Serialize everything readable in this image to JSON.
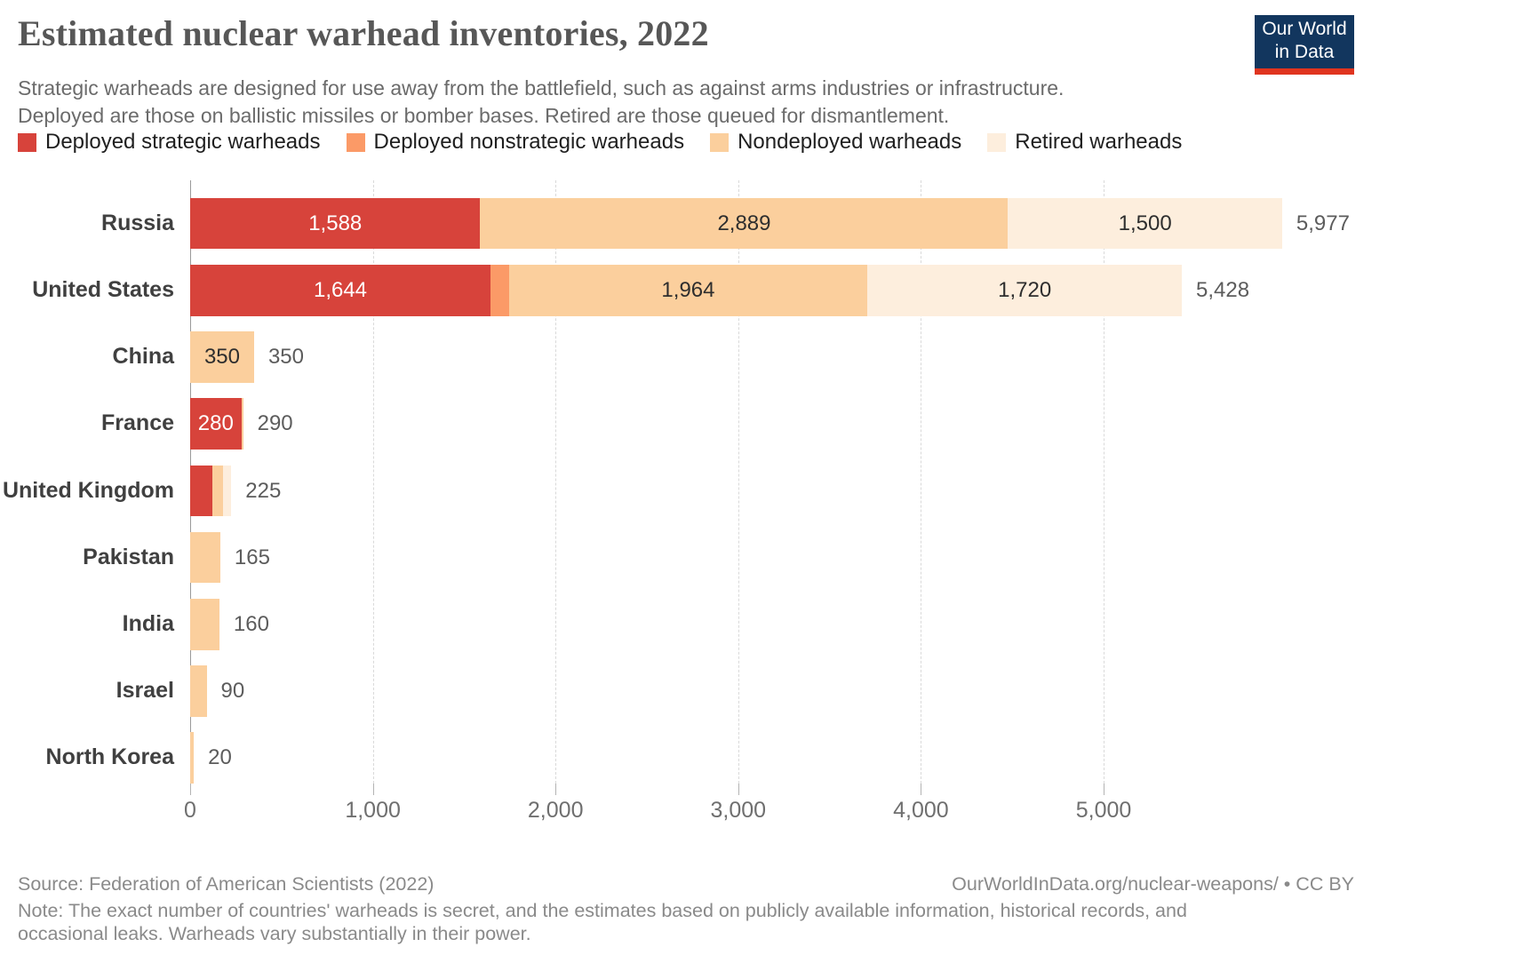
{
  "header": {
    "title": "Estimated nuclear warhead inventories, 2022",
    "subtitle_line1": "Strategic warheads are designed for use away from the battlefield, such as against arms industries or infrastructure.",
    "subtitle_line2": "Deployed are those on ballistic missiles or bomber bases. Retired are those queued for dismantlement.",
    "logo_line1": "Our World",
    "logo_line2": "in Data",
    "logo_bg_color": "#12365e",
    "logo_accent_color": "#e0341f"
  },
  "chart_data": {
    "type": "bar",
    "orientation": "horizontal",
    "stacked": true,
    "title": "Estimated nuclear warhead inventories, 2022",
    "series_names": [
      "Deployed strategic warheads",
      "Deployed nonstrategic warheads",
      "Nondeployed warheads",
      "Retired warheads"
    ],
    "colors": [
      "#d7433b",
      "#fb9a67",
      "#fbcf9d",
      "#fdeedd"
    ],
    "x_axis": {
      "min": 0,
      "max": 6000,
      "grid": "dashed",
      "ticks": [
        {
          "value": 0,
          "label": "0"
        },
        {
          "value": 1000,
          "label": "1,000"
        },
        {
          "value": 2000,
          "label": "2,000"
        },
        {
          "value": 3000,
          "label": "3,000"
        },
        {
          "value": 4000,
          "label": "4,000"
        },
        {
          "value": 5000,
          "label": "5,000"
        }
      ]
    },
    "countries": [
      {
        "name": "Russia",
        "total": 5977,
        "total_label": "5,977",
        "segments": [
          {
            "series": 0,
            "value": 1588,
            "label": "1,588"
          },
          {
            "series": 2,
            "value": 2889,
            "label": "2,889"
          },
          {
            "series": 3,
            "value": 1500,
            "label": "1,500"
          }
        ]
      },
      {
        "name": "United States",
        "total": 5428,
        "total_label": "5,428",
        "segments": [
          {
            "series": 0,
            "value": 1644,
            "label": "1,644"
          },
          {
            "series": 1,
            "value": 100
          },
          {
            "series": 2,
            "value": 1964,
            "label": "1,964"
          },
          {
            "series": 3,
            "value": 1720,
            "label": "1,720"
          }
        ]
      },
      {
        "name": "China",
        "total": 350,
        "total_label": "350",
        "segments": [
          {
            "series": 2,
            "value": 350,
            "label": "350"
          }
        ]
      },
      {
        "name": "France",
        "total": 290,
        "total_label": "290",
        "segments": [
          {
            "series": 0,
            "value": 280,
            "label": "280"
          },
          {
            "series": 2,
            "value": 10
          }
        ]
      },
      {
        "name": "United Kingdom",
        "total": 225,
        "total_label": "225",
        "segments": [
          {
            "series": 0,
            "value": 120
          },
          {
            "series": 2,
            "value": 60
          },
          {
            "series": 3,
            "value": 45
          }
        ]
      },
      {
        "name": "Pakistan",
        "total": 165,
        "total_label": "165",
        "segments": [
          {
            "series": 2,
            "value": 165
          }
        ]
      },
      {
        "name": "India",
        "total": 160,
        "total_label": "160",
        "segments": [
          {
            "series": 2,
            "value": 160
          }
        ]
      },
      {
        "name": "Israel",
        "total": 90,
        "total_label": "90",
        "segments": [
          {
            "series": 2,
            "value": 90
          }
        ]
      },
      {
        "name": "North Korea",
        "total": 20,
        "total_label": "20",
        "segments": [
          {
            "series": 2,
            "value": 20
          }
        ]
      }
    ]
  },
  "footer": {
    "source": "Source: Federation of American Scientists (2022)",
    "attribution": "OurWorldInData.org/nuclear-weapons/ • CC BY",
    "note_line1": "Note: The exact number of countries' warheads is secret, and the estimates based on publicly available information, historical records, and",
    "note_line2": "occasional leaks. Warheads vary substantially in their power."
  }
}
